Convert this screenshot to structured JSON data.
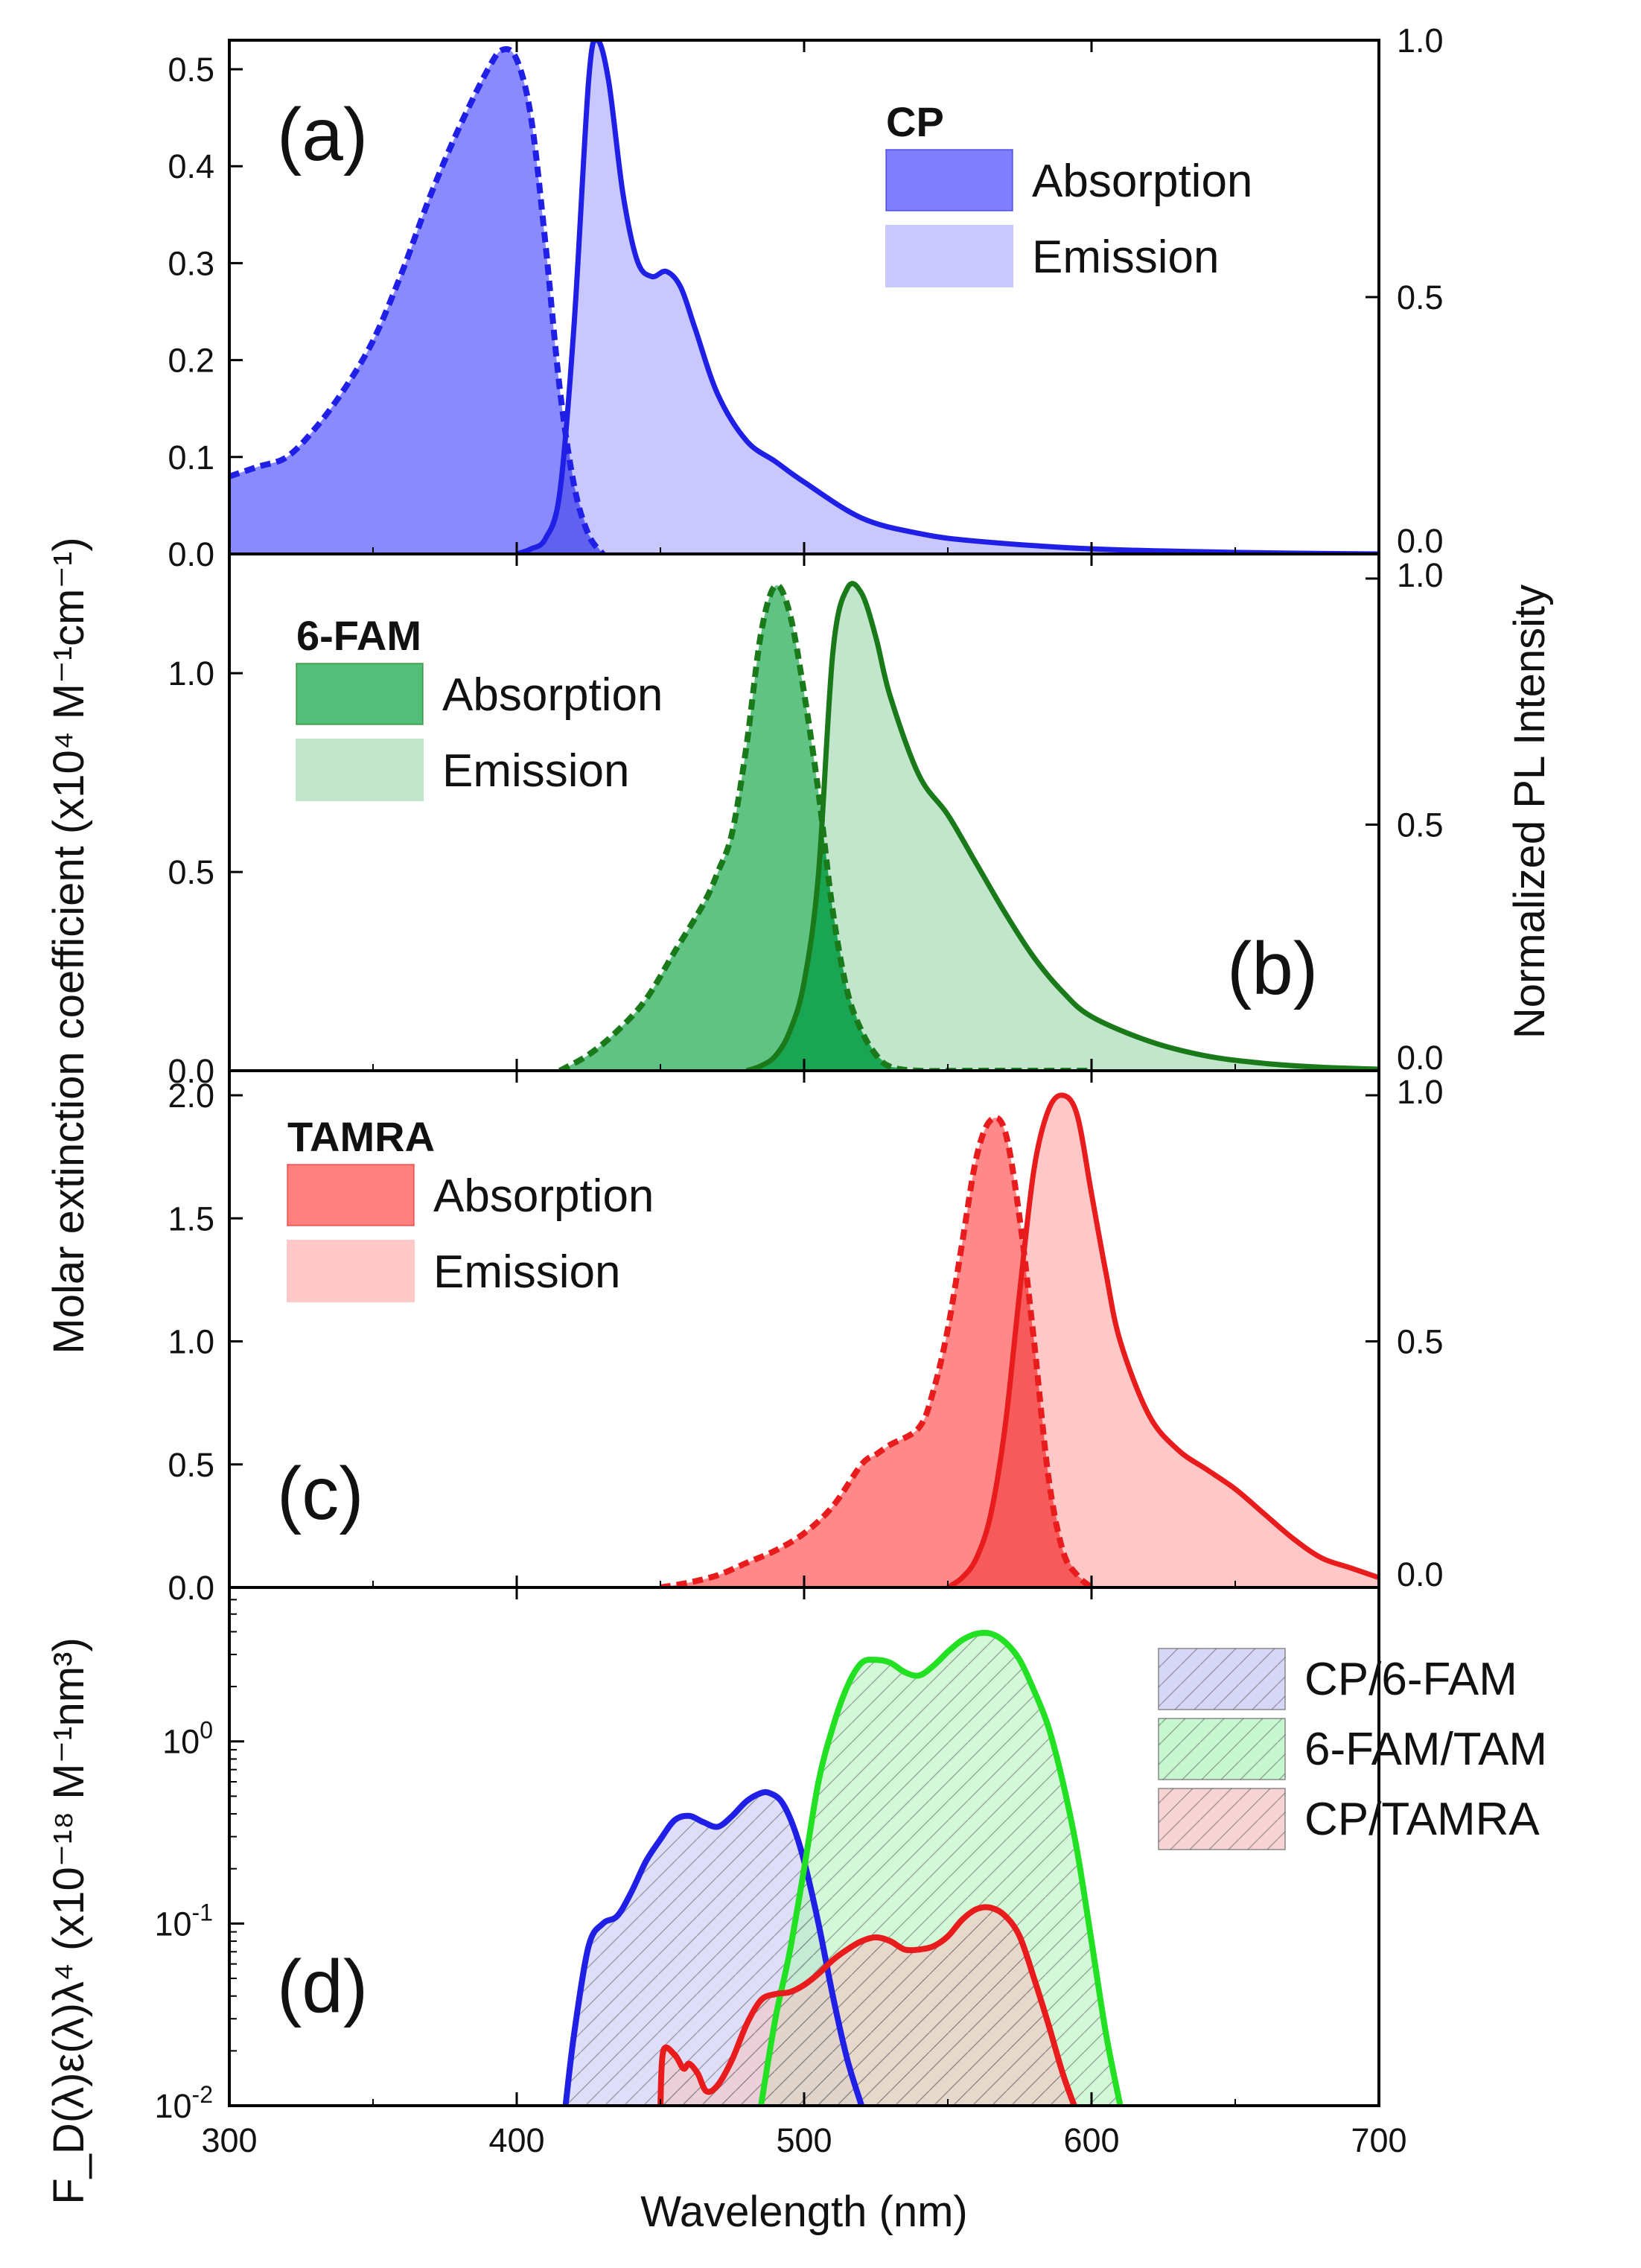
{
  "chart_data": {
    "type": "line",
    "shared": {
      "xlabel": "Wavelength (nm)",
      "xlim": [
        300,
        700
      ],
      "xticks": [
        300,
        400,
        500,
        600,
        700
      ],
      "xtick_labels": [
        "300",
        "400",
        "500",
        "600",
        "700"
      ],
      "ylabel_left": "Molar extinction coefficient (x10⁴ M⁻¹cm⁻¹)",
      "ylabel_right": "Normalized PL Intensity",
      "ylabel_bottom": "F_D(λ)ε(λ)λ⁴ (x10⁻¹⁸ M⁻¹nm³)"
    },
    "panels": [
      {
        "key": "a",
        "label": "(a)",
        "legend_title": "CP",
        "legend_entries": [
          "Absorption",
          "Emission"
        ],
        "colors": {
          "line": "#1f1fe6",
          "abs_fill": "#8080ff",
          "em_fill": "#c8c8ff",
          "overlap": "#5a5aee"
        },
        "ylim_left": [
          0,
          0.53
        ],
        "yticks_left": [
          0,
          0.1,
          0.2,
          0.3,
          0.4,
          0.5
        ],
        "ytick_labels_left": [
          "0.0",
          "0.1",
          "0.2",
          "0.3",
          "0.4",
          "0.5"
        ],
        "ylim_right": [
          0,
          1.0
        ],
        "yticks_right": [
          0,
          0.5,
          1.0
        ],
        "ytick_labels_right": [
          "0.0",
          "0.5",
          "1.0"
        ],
        "series": [
          {
            "name": "Absorption",
            "style": "dashed",
            "axis": "left",
            "x": [
              300,
              310,
              320,
              330,
              340,
              350,
              360,
              370,
              380,
              390,
              395,
              400,
              405,
              410,
              415,
              420,
              425,
              430
            ],
            "y": [
              0.08,
              0.09,
              0.1,
              0.13,
              0.17,
              0.22,
              0.29,
              0.37,
              0.44,
              0.5,
              0.52,
              0.51,
              0.45,
              0.32,
              0.17,
              0.07,
              0.02,
              0.0
            ]
          },
          {
            "name": "Emission",
            "style": "solid",
            "axis": "right",
            "x": [
              400,
              405,
              410,
              415,
              420,
              425,
              428,
              432,
              437,
              442,
              447,
              452,
              457,
              462,
              470,
              480,
              490,
              500,
              520,
              540,
              560,
              600,
              650,
              700
            ],
            "y": [
              0.0,
              0.01,
              0.03,
              0.12,
              0.45,
              0.92,
              1.0,
              0.92,
              0.7,
              0.57,
              0.54,
              0.55,
              0.52,
              0.44,
              0.31,
              0.22,
              0.18,
              0.14,
              0.07,
              0.04,
              0.025,
              0.01,
              0.003,
              0.0
            ]
          }
        ]
      },
      {
        "key": "b",
        "label": "(b)",
        "legend_title": "6-FAM",
        "legend_entries": [
          "Absorption",
          "Emission"
        ],
        "colors": {
          "line": "#1a7a1a",
          "abs_fill": "#52be7a",
          "em_fill": "#c2e6cb",
          "overlap": "#0fa04a"
        },
        "ylim_left": [
          0,
          1.3
        ],
        "yticks_left": [
          0,
          0.5,
          1.0
        ],
        "ytick_labels_left": [
          "0.0",
          "0.5",
          "1.0"
        ],
        "ylim_right": [
          0,
          1.05
        ],
        "yticks_right": [
          0,
          0.5,
          1.0
        ],
        "ytick_labels_right": [
          "0.0",
          "0.5",
          "1.0"
        ],
        "series": [
          {
            "name": "Absorption",
            "style": "dashed",
            "axis": "left",
            "x": [
              415,
              425,
              435,
              445,
              455,
              465,
              470,
              475,
              480,
              485,
              490,
              495,
              500,
              505,
              510,
              515,
              520,
              525,
              530,
              540,
              560,
              600
            ],
            "y": [
              0.0,
              0.04,
              0.1,
              0.18,
              0.3,
              0.42,
              0.5,
              0.6,
              0.82,
              1.1,
              1.22,
              1.15,
              0.95,
              0.7,
              0.4,
              0.2,
              0.1,
              0.04,
              0.01,
              0.0,
              0.0,
              0.0
            ]
          },
          {
            "name": "Emission",
            "style": "solid",
            "axis": "right",
            "x": [
              480,
              485,
              490,
              495,
              500,
              505,
              510,
              515,
              520,
              525,
              530,
              540,
              550,
              560,
              570,
              580,
              590,
              600,
              620,
              640,
              660,
              680,
              700
            ],
            "y": [
              0.0,
              0.01,
              0.03,
              0.08,
              0.18,
              0.4,
              0.85,
              0.98,
              0.97,
              0.88,
              0.76,
              0.6,
              0.52,
              0.42,
              0.32,
              0.23,
              0.16,
              0.11,
              0.06,
              0.03,
              0.015,
              0.007,
              0.003
            ]
          }
        ]
      },
      {
        "key": "c",
        "label": "(c)",
        "legend_title": "TAMRA",
        "legend_entries": [
          "Absorption",
          "Emission"
        ],
        "colors": {
          "line": "#e81c1c",
          "abs_fill": "#ff7f7f",
          "em_fill": "#ffc8c8",
          "overlap": "#f55252"
        },
        "ylim_left": [
          0,
          2.1
        ],
        "yticks_left": [
          0,
          0.5,
          1.0,
          1.5,
          2.0
        ],
        "ytick_labels_left": [
          "0.0",
          "0.5",
          "1.0",
          "1.5",
          "2.0"
        ],
        "ylim_right": [
          0,
          1.05
        ],
        "yticks_right": [
          0,
          0.5,
          1.0
        ],
        "ytick_labels_right": [
          "0.0",
          "0.5",
          "1.0"
        ],
        "series": [
          {
            "name": "Absorption",
            "style": "dashed",
            "axis": "left",
            "x": [
              450,
              460,
              470,
              480,
              490,
              500,
              510,
              520,
              525,
              530,
              540,
              545,
              550,
              555,
              560,
              565,
              570,
              575,
              580,
              585,
              590,
              595,
              600
            ],
            "y": [
              0.0,
              0.02,
              0.05,
              0.1,
              0.15,
              0.22,
              0.33,
              0.5,
              0.54,
              0.58,
              0.65,
              0.8,
              1.05,
              1.4,
              1.75,
              1.9,
              1.85,
              1.5,
              1.0,
              0.45,
              0.15,
              0.05,
              0.0
            ]
          },
          {
            "name": "Emission",
            "style": "solid",
            "axis": "right",
            "x": [
              550,
              555,
              560,
              565,
              570,
              575,
              580,
              585,
              590,
              595,
              600,
              605,
              610,
              620,
              630,
              640,
              650,
              660,
              670,
              680,
              690,
              700
            ],
            "y": [
              0.0,
              0.02,
              0.06,
              0.15,
              0.33,
              0.6,
              0.85,
              0.97,
              1.0,
              0.96,
              0.8,
              0.64,
              0.5,
              0.35,
              0.28,
              0.24,
              0.2,
              0.15,
              0.1,
              0.06,
              0.04,
              0.02
            ]
          }
        ]
      },
      {
        "key": "d",
        "label": "(d)",
        "type": "area-log",
        "ylim": [
          0.01,
          7.0
        ],
        "yticks": [
          0.01,
          0.1,
          1.0
        ],
        "ytick_labels": [
          {
            "base": "10",
            "exp": "-2"
          },
          {
            "base": "10",
            "exp": "-1"
          },
          {
            "base": "10",
            "exp": "0"
          }
        ],
        "series": [
          {
            "name": "CP/6-FAM",
            "color": "#1f1fe6",
            "fill": "#c8c8f4",
            "x": [
              417,
              420,
              425,
              430,
              435,
              440,
              445,
              450,
              455,
              460,
              465,
              470,
              475,
              480,
              485,
              488,
              492,
              496,
              500,
              505,
              510,
              515,
              520
            ],
            "y": [
              0.01,
              0.025,
              0.075,
              0.1,
              0.11,
              0.15,
              0.22,
              0.29,
              0.37,
              0.39,
              0.36,
              0.34,
              0.39,
              0.47,
              0.52,
              0.52,
              0.47,
              0.35,
              0.22,
              0.1,
              0.04,
              0.018,
              0.01
            ]
          },
          {
            "name": "6-FAM/TAM",
            "color": "#22e022",
            "fill": "#b4f4be",
            "x": [
              485,
              490,
              495,
              500,
              505,
              510,
              515,
              520,
              525,
              530,
              535,
              540,
              545,
              550,
              555,
              560,
              565,
              570,
              575,
              580,
              585,
              590,
              595,
              600,
              605,
              610
            ],
            "y": [
              0.01,
              0.03,
              0.07,
              0.2,
              0.6,
              1.2,
              2.0,
              2.7,
              2.8,
              2.7,
              2.4,
              2.3,
              2.6,
              3.1,
              3.6,
              3.9,
              3.9,
              3.5,
              2.8,
              1.9,
              1.2,
              0.6,
              0.25,
              0.08,
              0.025,
              0.01
            ]
          },
          {
            "name": "CP/TAMRA",
            "color": "#e81c1c",
            "fill": "#f4c4c4",
            "x": [
              450,
              451,
              455,
              458,
              460,
              463,
              466,
              470,
              475,
              480,
              485,
              490,
              495,
              500,
              505,
              510,
              515,
              520,
              525,
              530,
              535,
              540,
              545,
              550,
              555,
              560,
              565,
              570,
              575,
              580,
              585,
              590,
              594
            ],
            "y": [
              0.01,
              0.02,
              0.019,
              0.016,
              0.017,
              0.015,
              0.012,
              0.013,
              0.018,
              0.028,
              0.038,
              0.041,
              0.042,
              0.046,
              0.053,
              0.063,
              0.072,
              0.08,
              0.084,
              0.08,
              0.072,
              0.072,
              0.075,
              0.085,
              0.105,
              0.12,
              0.122,
              0.11,
              0.085,
              0.05,
              0.028,
              0.015,
              0.01
            ]
          }
        ]
      }
    ]
  }
}
